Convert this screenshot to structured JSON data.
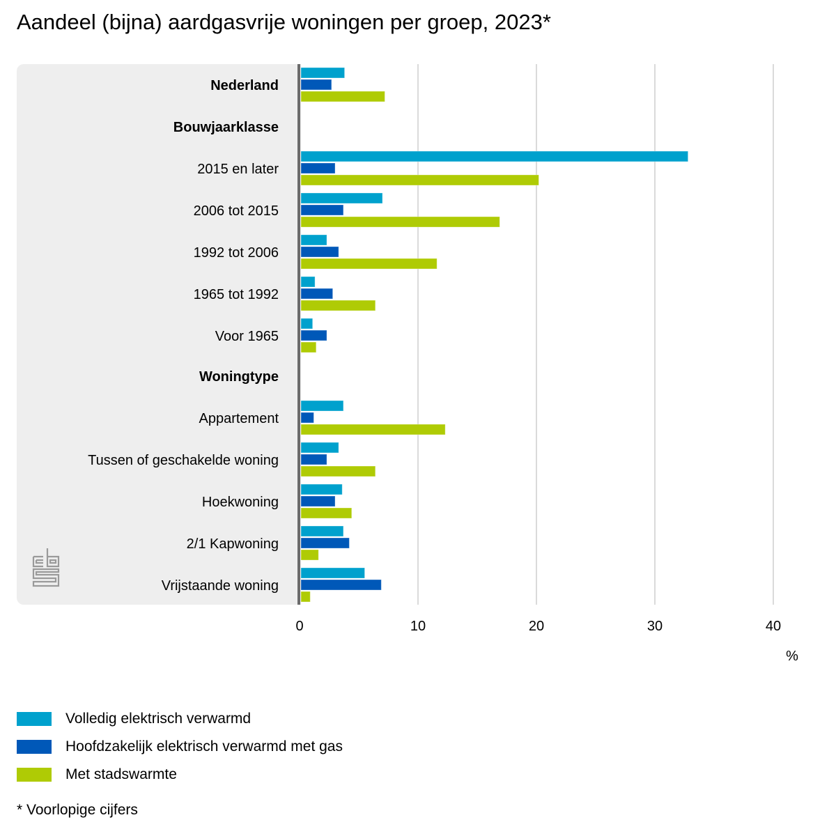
{
  "title": "Aandeel (bijna) aardgasvrije woningen per groep, 2023*",
  "footnote": "* Voorlopige cijfers",
  "logo": "cbs-logo-icon",
  "chart_data": {
    "type": "bar",
    "orientation": "horizontal",
    "title": "Aandeel (bijna) aardgasvrije woningen per groep, 2023*",
    "xlabel": "%",
    "ylabel": "",
    "xlim": [
      0,
      40
    ],
    "xticks": [
      0,
      10,
      20,
      30,
      40
    ],
    "grid": true,
    "legend_position": "bottom-left",
    "categories": [
      {
        "label": "Nederland",
        "bold": true,
        "header": false
      },
      {
        "label": "Bouwjaarklasse",
        "bold": true,
        "header": true
      },
      {
        "label": "2015 en later",
        "bold": false,
        "header": false
      },
      {
        "label": "2006 tot 2015",
        "bold": false,
        "header": false
      },
      {
        "label": "1992 tot 2006",
        "bold": false,
        "header": false
      },
      {
        "label": "1965 tot 1992",
        "bold": false,
        "header": false
      },
      {
        "label": "Voor 1965",
        "bold": false,
        "header": false
      },
      {
        "label": "Woningtype",
        "bold": true,
        "header": true
      },
      {
        "label": "Appartement",
        "bold": false,
        "header": false
      },
      {
        "label": "Tussen of geschakelde woning",
        "bold": false,
        "header": false
      },
      {
        "label": "Hoekwoning",
        "bold": false,
        "header": false
      },
      {
        "label": "2/1 Kapwoning",
        "bold": false,
        "header": false
      },
      {
        "label": "Vrijstaande woning",
        "bold": false,
        "header": false
      }
    ],
    "series": [
      {
        "name": "Volledig elektrisch verwarmd",
        "color": "#00a1cd",
        "values": [
          3.8,
          null,
          32.8,
          7.0,
          2.3,
          1.3,
          1.1,
          null,
          3.7,
          3.3,
          3.6,
          3.7,
          5.5
        ]
      },
      {
        "name": "Hoofdzakelijk elektrisch verwarmd met gas",
        "color": "#0058b8",
        "values": [
          2.7,
          null,
          3.0,
          3.7,
          3.3,
          2.8,
          2.3,
          null,
          1.2,
          2.3,
          3.0,
          4.2,
          6.9
        ]
      },
      {
        "name": "Met stadswarmte",
        "color": "#afcb05",
        "values": [
          7.2,
          null,
          20.2,
          16.9,
          11.6,
          6.4,
          1.4,
          null,
          12.3,
          6.4,
          4.4,
          1.6,
          0.9
        ]
      }
    ]
  }
}
